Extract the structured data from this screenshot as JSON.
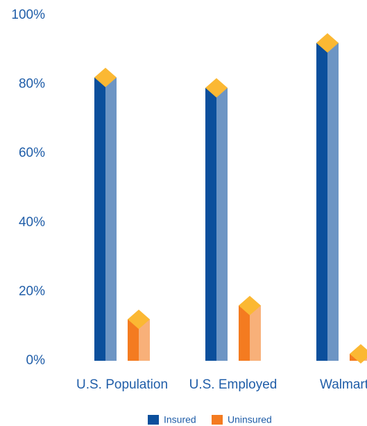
{
  "chart_data": {
    "type": "bar",
    "categories": [
      "U.S. Population",
      "U.S. Employed",
      "Walmart"
    ],
    "series": [
      {
        "name": "Insured",
        "color": "#0b4f9c",
        "values": [
          82,
          79,
          92
        ]
      },
      {
        "name": "Uninsured",
        "color": "#f47b20",
        "values": [
          12,
          16,
          2
        ]
      }
    ],
    "ylim": [
      0,
      100
    ],
    "yticks": [
      {
        "value": 0,
        "label": "0%"
      },
      {
        "value": 20,
        "label": "20%"
      },
      {
        "value": 40,
        "label": "40%"
      },
      {
        "value": 60,
        "label": "60%"
      },
      {
        "value": 80,
        "label": "80%"
      },
      {
        "value": 100,
        "label": "100%"
      }
    ],
    "cap_color": "#fbb833",
    "grid": false
  }
}
